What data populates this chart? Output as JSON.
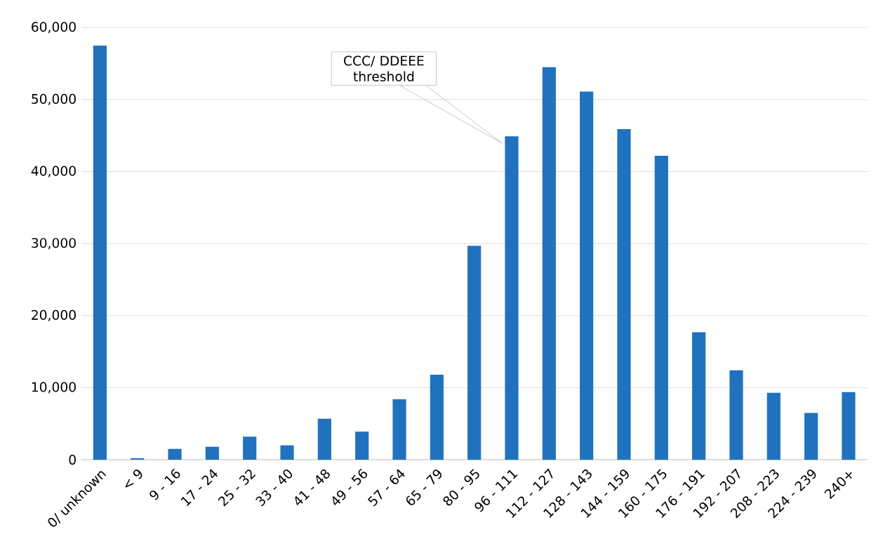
{
  "chart_data": {
    "type": "bar",
    "categories": [
      "0/ unknown",
      "< 9",
      "9 - 16",
      "17 - 24",
      "25 - 32",
      "33 - 40",
      "41 - 48",
      "49 - 56",
      "57 - 64",
      "65 - 79",
      "80 - 95",
      "96 - 111",
      "112 - 127",
      "128 - 143",
      "144 - 159",
      "160 - 175",
      "176 - 191",
      "192 - 207",
      "208 - 223",
      "224 - 239",
      "240+"
    ],
    "values": [
      57500,
      200,
      1500,
      1800,
      3200,
      2000,
      5700,
      3900,
      8400,
      11800,
      29700,
      44900,
      54500,
      51100,
      45900,
      42200,
      17700,
      12400,
      9300,
      6500,
      9400
    ],
    "color": "#2072bf",
    "ylim": [
      0,
      60000
    ],
    "yticks": [
      {
        "value": 0,
        "label": "0"
      },
      {
        "value": 10000,
        "label": "10,000"
      },
      {
        "value": 20000,
        "label": "20,000"
      },
      {
        "value": 30000,
        "label": "30,000"
      },
      {
        "value": 40000,
        "label": "40,000"
      },
      {
        "value": 50000,
        "label": "50,000"
      },
      {
        "value": 60000,
        "label": "60,000"
      }
    ],
    "grid": "y",
    "annotations": [
      "CCC/ DDEEE threshold"
    ]
  }
}
